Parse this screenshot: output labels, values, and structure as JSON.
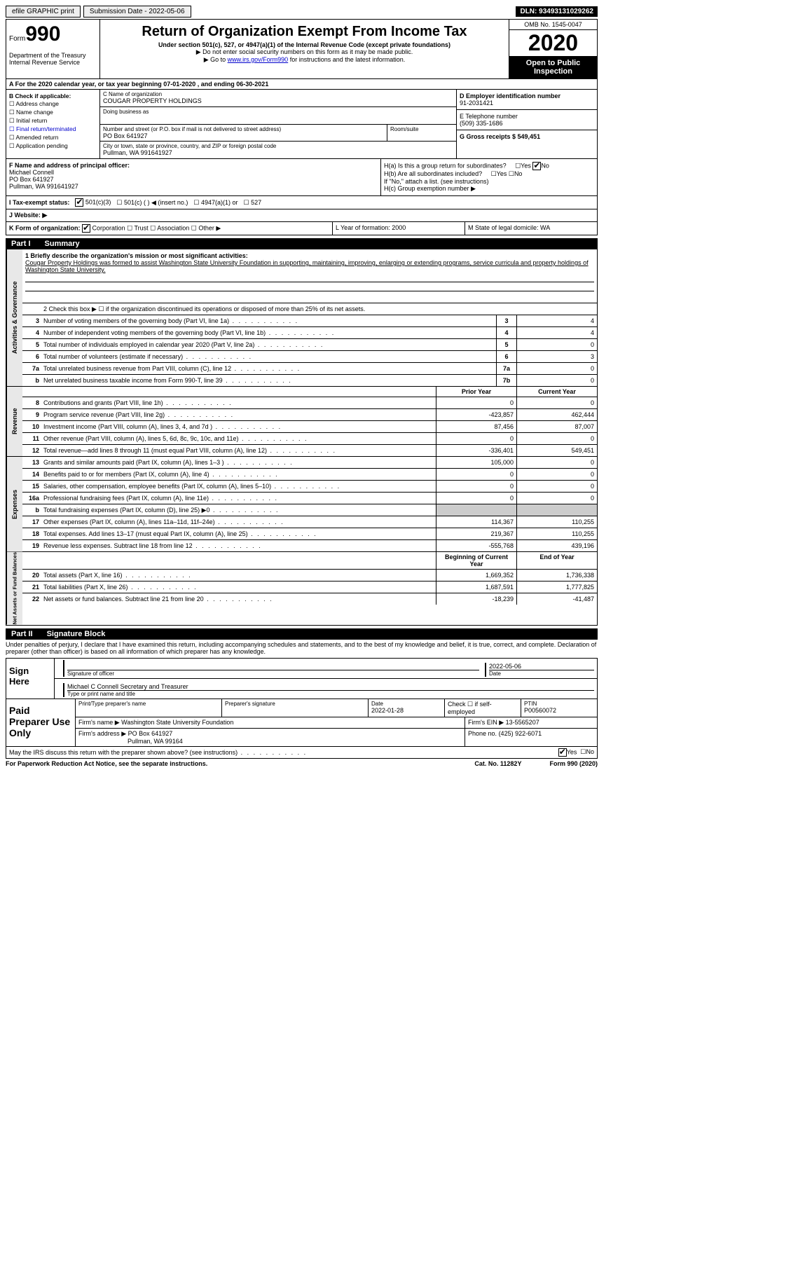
{
  "topbar": {
    "efile": "efile GRAPHIC print",
    "submission": "Submission Date - 2022-05-06",
    "dln": "DLN: 93493131029262"
  },
  "header": {
    "form_label": "Form",
    "form_num": "990",
    "dept": "Department of the Treasury\nInternal Revenue Service",
    "title": "Return of Organization Exempt From Income Tax",
    "subtitle": "Under section 501(c), 527, or 4947(a)(1) of the Internal Revenue Code (except private foundations)",
    "note1": "▶ Do not enter social security numbers on this form as it may be made public.",
    "note2_pre": "▶ Go to ",
    "note2_link": "www.irs.gov/Form990",
    "note2_post": " for instructions and the latest information.",
    "omb": "OMB No. 1545-0047",
    "year": "2020",
    "inspection": "Open to Public Inspection"
  },
  "period": "A For the 2020 calendar year, or tax year beginning 07-01-2020    , and ending 06-30-2021",
  "sectionB": {
    "label": "B Check if applicable:",
    "opts": [
      "Address change",
      "Name change",
      "Initial return",
      "Final return/terminated",
      "Amended return",
      "Application pending"
    ]
  },
  "sectionC": {
    "name_label": "C Name of organization",
    "name": "COUGAR PROPERTY HOLDINGS",
    "dba_label": "Doing business as",
    "addr_label": "Number and street (or P.O. box if mail is not delivered to street address)",
    "addr": "PO Box 641927",
    "room_label": "Room/suite",
    "city_label": "City or town, state or province, country, and ZIP or foreign postal code",
    "city": "Pullman, WA  991641927"
  },
  "sectionD": {
    "label": "D Employer identification number",
    "value": "91-2031421"
  },
  "sectionE": {
    "label": "E Telephone number",
    "value": "(509) 335-1686"
  },
  "sectionG": {
    "label": "G Gross receipts $ 549,451"
  },
  "sectionF": {
    "label": "F Name and address of principal officer:",
    "name": "Michael Connell",
    "addr1": "PO Box 641927",
    "addr2": "Pullman, WA  991641927"
  },
  "sectionH": {
    "a": "H(a)  Is this a group return for subordinates?",
    "b": "H(b)  Are all subordinates included?",
    "b_note": "If \"No,\" attach a list. (see instructions)",
    "c": "H(c)  Group exemption number ▶"
  },
  "sectionI": {
    "label": "I    Tax-exempt status:",
    "o1": "501(c)(3)",
    "o2": "501(c) (  ) ◀ (insert no.)",
    "o3": "4947(a)(1) or",
    "o4": "527"
  },
  "sectionJ": "J    Website: ▶",
  "sectionK": "K Form of organization:",
  "k_opts": [
    "Corporation",
    "Trust",
    "Association",
    "Other ▶"
  ],
  "sectionL": "L Year of formation: 2000",
  "sectionM": "M State of legal domicile: WA",
  "part1_label": "Part I",
  "part1_title": "Summary",
  "mission_label": "1   Briefly describe the organization's mission or most significant activities:",
  "mission": "Cougar Property Holdings was formed to assist Washington State University Foundation in supporting, maintaining, improving, enlarging or extending programs, service curricula and property holdings of Washington State University.",
  "line2": "2    Check this box ▶ ☐  if the organization discontinued its operations or disposed of more than 25% of its net assets.",
  "governance_lines": [
    {
      "n": "3",
      "label": "Number of voting members of the governing body (Part VI, line 1a)",
      "box": "3",
      "val": "4"
    },
    {
      "n": "4",
      "label": "Number of independent voting members of the governing body (Part VI, line 1b)",
      "box": "4",
      "val": "4"
    },
    {
      "n": "5",
      "label": "Total number of individuals employed in calendar year 2020 (Part V, line 2a)",
      "box": "5",
      "val": "0"
    },
    {
      "n": "6",
      "label": "Total number of volunteers (estimate if necessary)",
      "box": "6",
      "val": "3"
    },
    {
      "n": "7a",
      "label": "Total unrelated business revenue from Part VIII, column (C), line 12",
      "box": "7a",
      "val": "0"
    },
    {
      "n": "b",
      "label": "Net unrelated business taxable income from Form 990-T, line 39",
      "box": "7b",
      "val": "0"
    }
  ],
  "col_prior": "Prior Year",
  "col_current": "Current Year",
  "revenue_lines": [
    {
      "n": "8",
      "label": "Contributions and grants (Part VIII, line 1h)",
      "prior": "0",
      "cur": "0"
    },
    {
      "n": "9",
      "label": "Program service revenue (Part VIII, line 2g)",
      "prior": "-423,857",
      "cur": "462,444"
    },
    {
      "n": "10",
      "label": "Investment income (Part VIII, column (A), lines 3, 4, and 7d )",
      "prior": "87,456",
      "cur": "87,007"
    },
    {
      "n": "11",
      "label": "Other revenue (Part VIII, column (A), lines 5, 6d, 8c, 9c, 10c, and 11e)",
      "prior": "0",
      "cur": "0"
    },
    {
      "n": "12",
      "label": "Total revenue—add lines 8 through 11 (must equal Part VIII, column (A), line 12)",
      "prior": "-336,401",
      "cur": "549,451"
    }
  ],
  "expense_lines": [
    {
      "n": "13",
      "label": "Grants and similar amounts paid (Part IX, column (A), lines 1–3 )",
      "prior": "105,000",
      "cur": "0"
    },
    {
      "n": "14",
      "label": "Benefits paid to or for members (Part IX, column (A), line 4)",
      "prior": "0",
      "cur": "0"
    },
    {
      "n": "15",
      "label": "Salaries, other compensation, employee benefits (Part IX, column (A), lines 5–10)",
      "prior": "0",
      "cur": "0"
    },
    {
      "n": "16a",
      "label": "Professional fundraising fees (Part IX, column (A), line 11e)",
      "prior": "0",
      "cur": "0"
    },
    {
      "n": "b",
      "label": "Total fundraising expenses (Part IX, column (D), line 25) ▶0",
      "prior": "",
      "cur": "",
      "shaded": true
    },
    {
      "n": "17",
      "label": "Other expenses (Part IX, column (A), lines 11a–11d, 11f–24e)",
      "prior": "114,367",
      "cur": "110,255"
    },
    {
      "n": "18",
      "label": "Total expenses. Add lines 13–17 (must equal Part IX, column (A), line 25)",
      "prior": "219,367",
      "cur": "110,255"
    },
    {
      "n": "19",
      "label": "Revenue less expenses. Subtract line 18 from line 12",
      "prior": "-555,768",
      "cur": "439,196"
    }
  ],
  "col_begin": "Beginning of Current Year",
  "col_end": "End of Year",
  "netassets_lines": [
    {
      "n": "20",
      "label": "Total assets (Part X, line 16)",
      "prior": "1,669,352",
      "cur": "1,736,338"
    },
    {
      "n": "21",
      "label": "Total liabilities (Part X, line 26)",
      "prior": "1,687,591",
      "cur": "1,777,825"
    },
    {
      "n": "22",
      "label": "Net assets or fund balances. Subtract line 21 from line 20",
      "prior": "-18,239",
      "cur": "-41,487"
    }
  ],
  "vert_labels": {
    "gov": "Activities & Governance",
    "rev": "Revenue",
    "exp": "Expenses",
    "net": "Net Assets or Fund Balances"
  },
  "part2_label": "Part II",
  "part2_title": "Signature Block",
  "penalties": "Under penalties of perjury, I declare that I have examined this return, including accompanying schedules and statements, and to the best of my knowledge and belief, it is true, correct, and complete. Declaration of preparer (other than officer) is based on all information of which preparer has any knowledge.",
  "sign_here": "Sign Here",
  "sig_officer_label": "Signature of officer",
  "sig_date_label": "Date",
  "sig_date": "2022-05-06",
  "sig_name": "Michael C Connell  Secretary and Treasurer",
  "sig_name_label": "Type or print name and title",
  "paid_prep": "Paid Preparer Use Only",
  "prep_name_label": "Print/Type preparer's name",
  "prep_sig_label": "Preparer's signature",
  "prep_date_label": "Date",
  "prep_date": "2022-01-28",
  "prep_check_label": "Check ☐ if self-employed",
  "ptin_label": "PTIN",
  "ptin": "P00560072",
  "firm_name_label": "Firm's name    ▶",
  "firm_name": "Washington State University Foundation",
  "firm_ein_label": "Firm's EIN ▶",
  "firm_ein": "13-5565207",
  "firm_addr_label": "Firm's address ▶",
  "firm_addr": "PO Box 641927",
  "firm_city": "Pullman, WA  99164",
  "firm_phone_label": "Phone no.",
  "firm_phone": "(425) 922-6071",
  "discuss": "May the IRS discuss this return with the preparer shown above? (see instructions)",
  "yes": "Yes",
  "no": "No",
  "footer_left": "For Paperwork Reduction Act Notice, see the separate instructions.",
  "footer_mid": "Cat. No. 11282Y",
  "footer_right": "Form 990 (2020)"
}
